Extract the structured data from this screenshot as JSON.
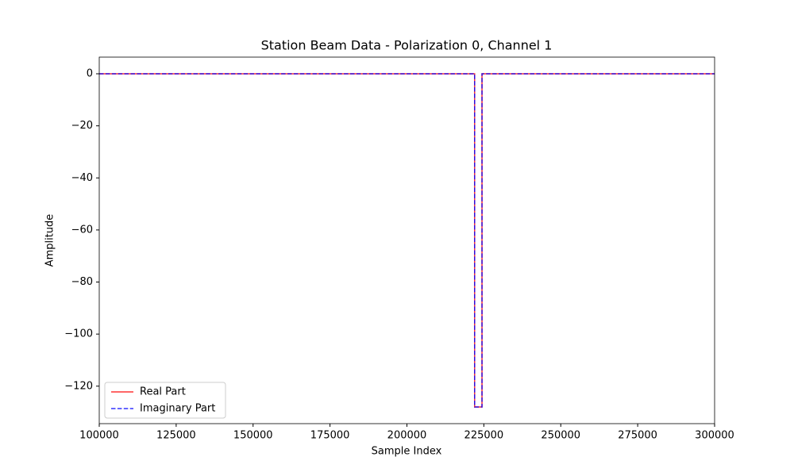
{
  "chart_data": {
    "type": "line",
    "title": "Station Beam Data - Polarization 0, Channel 1",
    "xlabel": "Sample Index",
    "ylabel": "Amplitude",
    "x": [
      100000,
      222000,
      222000,
      224400,
      224400,
      300000
    ],
    "series": [
      {
        "name": "Real Part",
        "color": "#ff0000",
        "linestyle": "solid",
        "values": [
          0,
          0,
          -128,
          -128,
          0,
          0
        ]
      },
      {
        "name": "Imaginary Part",
        "color": "#0000ff",
        "linestyle": "dashed",
        "values": [
          0,
          0,
          -128,
          -128,
          0,
          0
        ]
      }
    ],
    "xlim": [
      100000,
      300000
    ],
    "xticks": [
      100000,
      125000,
      150000,
      175000,
      200000,
      225000,
      250000,
      275000,
      300000
    ],
    "ylim": [
      -134.4,
      6.4
    ],
    "yticks": [
      {
        "value": -120,
        "label": "−120"
      },
      {
        "value": -100,
        "label": "−100"
      },
      {
        "value": -80,
        "label": "−80"
      },
      {
        "value": -60,
        "label": "−60"
      },
      {
        "value": -40,
        "label": "−40"
      },
      {
        "value": -20,
        "label": "−20"
      },
      0
    ],
    "grid": false,
    "legend": "lower left"
  }
}
